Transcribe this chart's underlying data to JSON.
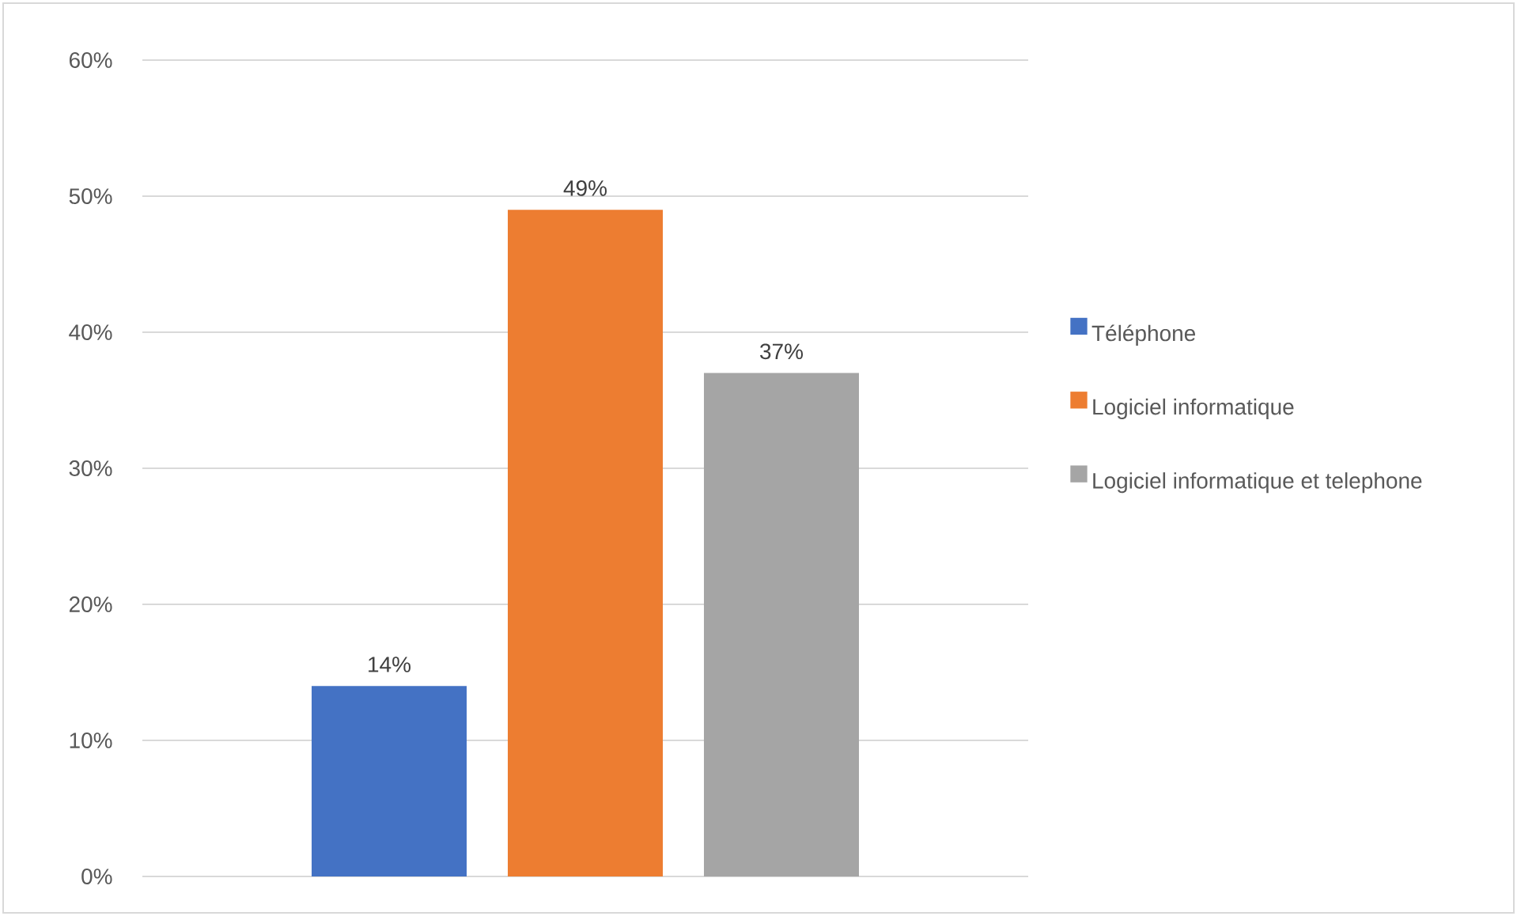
{
  "chart_data": {
    "type": "bar",
    "categories": [
      null
    ],
    "series": [
      {
        "name": "Téléphone",
        "color": "#4472c4",
        "values": [
          14
        ],
        "value_labels": [
          "14%"
        ]
      },
      {
        "name": "Logiciel informatique",
        "color": "#ed7d31",
        "values": [
          49
        ],
        "value_labels": [
          "49%"
        ]
      },
      {
        "name": "Logiciel informatique et telephone",
        "color": "#a5a5a5",
        "values": [
          37
        ],
        "value_labels": [
          "37%"
        ]
      }
    ],
    "ylim": [
      0,
      60
    ],
    "yticks": [
      {
        "value": 0,
        "label": "0%"
      },
      {
        "value": 10,
        "label": "10%"
      },
      {
        "value": 20,
        "label": "20%"
      },
      {
        "value": 30,
        "label": "30%"
      },
      {
        "value": 40,
        "label": "40%"
      },
      {
        "value": 50,
        "label": "50%"
      },
      {
        "value": 60,
        "label": "60%"
      }
    ],
    "grid": "y",
    "legend": "right"
  }
}
